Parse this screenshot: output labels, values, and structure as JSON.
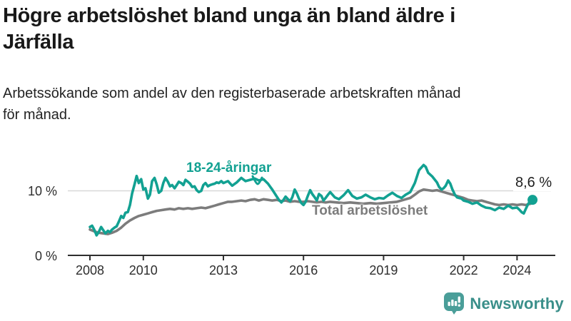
{
  "title_lines": [
    "Högre arbetslöshet bland unga än bland äldre i",
    "Järfälla"
  ],
  "subtitle_lines": [
    "Arbetssökande som andel av den registerbaserade arbetskraften månad",
    "för månad."
  ],
  "colors": {
    "young_line": "#12a192",
    "total_line": "#7c7c7c",
    "grid_line": "#d8d8d8",
    "axis_line": "#2e2e2e",
    "logo_bubble": "#4a9e99",
    "logo_text": "#3a8f8a"
  },
  "logo": {
    "name": "Newsworthy"
  },
  "chart_data": {
    "type": "line",
    "x_unit": "year (monthly data)",
    "xlim": [
      2008.0,
      2024.75
    ],
    "ylim": [
      0,
      15
    ],
    "grid": "single horizontal gridline at 10 %",
    "legend_position": "labels drawn next to lines",
    "y_ticks": [
      {
        "value": 10,
        "label": "10 %"
      },
      {
        "value": 0,
        "label": "0 %"
      }
    ],
    "x_ticks": [
      {
        "value": 2008,
        "label": "2008"
      },
      {
        "value": 2010,
        "label": "2010"
      },
      {
        "value": 2013,
        "label": "2013"
      },
      {
        "value": 2016,
        "label": "2016"
      },
      {
        "value": 2019,
        "label": "2019"
      },
      {
        "value": 2022,
        "label": "2022"
      },
      {
        "value": 2024,
        "label": "2024"
      }
    ],
    "end_annotation": {
      "label": "8,6 %",
      "series": "18-24-åringar",
      "x": 2024.58,
      "y": 8.6
    },
    "series": [
      {
        "name": "Total arbetslöshet",
        "color": "#7c7c7c",
        "points": [
          [
            2008.0,
            4.0
          ],
          [
            2008.17,
            3.7
          ],
          [
            2008.33,
            3.5
          ],
          [
            2008.5,
            3.4
          ],
          [
            2008.67,
            3.3
          ],
          [
            2008.83,
            3.5
          ],
          [
            2009.0,
            3.8
          ],
          [
            2009.17,
            4.3
          ],
          [
            2009.33,
            4.9
          ],
          [
            2009.5,
            5.4
          ],
          [
            2009.67,
            5.8
          ],
          [
            2009.83,
            6.1
          ],
          [
            2010.0,
            6.3
          ],
          [
            2010.17,
            6.5
          ],
          [
            2010.33,
            6.7
          ],
          [
            2010.5,
            6.9
          ],
          [
            2010.67,
            7.0
          ],
          [
            2010.83,
            7.1
          ],
          [
            2011.0,
            7.2
          ],
          [
            2011.17,
            7.1
          ],
          [
            2011.33,
            7.3
          ],
          [
            2011.5,
            7.2
          ],
          [
            2011.67,
            7.3
          ],
          [
            2011.83,
            7.2
          ],
          [
            2012.0,
            7.3
          ],
          [
            2012.17,
            7.4
          ],
          [
            2012.33,
            7.3
          ],
          [
            2012.5,
            7.5
          ],
          [
            2012.67,
            7.7
          ],
          [
            2012.83,
            7.9
          ],
          [
            2013.0,
            8.1
          ],
          [
            2013.17,
            8.3
          ],
          [
            2013.33,
            8.3
          ],
          [
            2013.5,
            8.4
          ],
          [
            2013.67,
            8.5
          ],
          [
            2013.83,
            8.4
          ],
          [
            2014.0,
            8.6
          ],
          [
            2014.17,
            8.7
          ],
          [
            2014.33,
            8.5
          ],
          [
            2014.5,
            8.7
          ],
          [
            2014.67,
            8.6
          ],
          [
            2014.83,
            8.5
          ],
          [
            2015.0,
            8.6
          ],
          [
            2015.17,
            8.4
          ],
          [
            2015.33,
            8.5
          ],
          [
            2015.5,
            8.3
          ],
          [
            2015.67,
            8.4
          ],
          [
            2015.83,
            8.3
          ],
          [
            2016.0,
            8.3
          ],
          [
            2016.17,
            8.4
          ],
          [
            2016.33,
            8.3
          ],
          [
            2016.5,
            8.2
          ],
          [
            2016.67,
            8.3
          ],
          [
            2016.83,
            8.2
          ],
          [
            2017.0,
            8.3
          ],
          [
            2017.25,
            8.2
          ],
          [
            2017.5,
            8.1
          ],
          [
            2017.75,
            8.2
          ],
          [
            2018.0,
            8.1
          ],
          [
            2018.25,
            8.0
          ],
          [
            2018.5,
            8.1
          ],
          [
            2018.75,
            8.0
          ],
          [
            2019.0,
            8.1
          ],
          [
            2019.25,
            8.2
          ],
          [
            2019.5,
            8.3
          ],
          [
            2019.75,
            8.6
          ],
          [
            2020.0,
            8.9
          ],
          [
            2020.17,
            9.4
          ],
          [
            2020.33,
            9.9
          ],
          [
            2020.5,
            10.2
          ],
          [
            2020.67,
            10.1
          ],
          [
            2020.83,
            10.0
          ],
          [
            2021.0,
            10.1
          ],
          [
            2021.17,
            9.9
          ],
          [
            2021.33,
            9.7
          ],
          [
            2021.5,
            9.5
          ],
          [
            2021.67,
            9.3
          ],
          [
            2021.83,
            9.1
          ],
          [
            2022.0,
            8.9
          ],
          [
            2022.17,
            8.6
          ],
          [
            2022.33,
            8.5
          ],
          [
            2022.5,
            8.4
          ],
          [
            2022.67,
            8.5
          ],
          [
            2022.83,
            8.3
          ],
          [
            2023.0,
            8.1
          ],
          [
            2023.17,
            7.9
          ],
          [
            2023.33,
            7.8
          ],
          [
            2023.5,
            7.9
          ],
          [
            2023.67,
            7.8
          ],
          [
            2023.83,
            7.9
          ],
          [
            2024.0,
            7.8
          ],
          [
            2024.17,
            7.9
          ],
          [
            2024.33,
            7.8
          ],
          [
            2024.5,
            8.0
          ]
        ]
      },
      {
        "name": "18-24-åringar",
        "color": "#12a192",
        "points": [
          [
            2008.0,
            4.4
          ],
          [
            2008.08,
            4.6
          ],
          [
            2008.17,
            3.9
          ],
          [
            2008.25,
            3.1
          ],
          [
            2008.33,
            3.6
          ],
          [
            2008.42,
            4.4
          ],
          [
            2008.5,
            3.9
          ],
          [
            2008.58,
            3.4
          ],
          [
            2008.67,
            3.8
          ],
          [
            2008.75,
            3.6
          ],
          [
            2008.83,
            4.0
          ],
          [
            2008.92,
            4.3
          ],
          [
            2009.0,
            4.5
          ],
          [
            2009.08,
            5.2
          ],
          [
            2009.17,
            6.1
          ],
          [
            2009.25,
            5.8
          ],
          [
            2009.33,
            6.6
          ],
          [
            2009.42,
            6.7
          ],
          [
            2009.5,
            7.8
          ],
          [
            2009.58,
            9.6
          ],
          [
            2009.67,
            11.0
          ],
          [
            2009.75,
            12.3
          ],
          [
            2009.83,
            11.2
          ],
          [
            2009.92,
            11.8
          ],
          [
            2010.0,
            10.2
          ],
          [
            2010.08,
            10.4
          ],
          [
            2010.17,
            8.8
          ],
          [
            2010.25,
            9.4
          ],
          [
            2010.33,
            11.5
          ],
          [
            2010.42,
            12.0
          ],
          [
            2010.5,
            11.0
          ],
          [
            2010.58,
            9.7
          ],
          [
            2010.67,
            10.0
          ],
          [
            2010.75,
            11.2
          ],
          [
            2010.83,
            12.0
          ],
          [
            2010.92,
            11.4
          ],
          [
            2011.0,
            10.7
          ],
          [
            2011.08,
            10.9
          ],
          [
            2011.17,
            10.4
          ],
          [
            2011.25,
            10.9
          ],
          [
            2011.33,
            11.4
          ],
          [
            2011.42,
            11.2
          ],
          [
            2011.5,
            10.9
          ],
          [
            2011.58,
            11.7
          ],
          [
            2011.67,
            11.4
          ],
          [
            2011.75,
            11.1
          ],
          [
            2011.83,
            10.6
          ],
          [
            2011.92,
            10.7
          ],
          [
            2012.0,
            10.1
          ],
          [
            2012.08,
            9.8
          ],
          [
            2012.17,
            10.0
          ],
          [
            2012.25,
            10.9
          ],
          [
            2012.33,
            11.2
          ],
          [
            2012.42,
            10.7
          ],
          [
            2012.5,
            10.9
          ],
          [
            2012.58,
            11.0
          ],
          [
            2012.67,
            11.1
          ],
          [
            2012.75,
            11.3
          ],
          [
            2012.83,
            11.2
          ],
          [
            2012.92,
            11.5
          ],
          [
            2013.0,
            11.2
          ],
          [
            2013.17,
            11.5
          ],
          [
            2013.33,
            10.8
          ],
          [
            2013.5,
            11.3
          ],
          [
            2013.67,
            12.0
          ],
          [
            2013.83,
            11.5
          ],
          [
            2014.0,
            11.7
          ],
          [
            2014.17,
            11.9
          ],
          [
            2014.33,
            11.6
          ],
          [
            2014.5,
            11.8
          ],
          [
            2014.67,
            11.1
          ],
          [
            2014.83,
            10.2
          ],
          [
            2015.0,
            9.1
          ],
          [
            2015.08,
            8.6
          ],
          [
            2015.17,
            8.2
          ],
          [
            2015.25,
            8.6
          ],
          [
            2015.33,
            9.1
          ],
          [
            2015.42,
            8.7
          ],
          [
            2015.5,
            8.4
          ],
          [
            2015.58,
            9.0
          ],
          [
            2015.67,
            10.2
          ],
          [
            2015.75,
            9.6
          ],
          [
            2015.83,
            8.8
          ],
          [
            2015.92,
            8.1
          ],
          [
            2016.0,
            7.8
          ],
          [
            2016.08,
            8.3
          ],
          [
            2016.17,
            9.3
          ],
          [
            2016.25,
            10.1
          ],
          [
            2016.33,
            9.5
          ],
          [
            2016.42,
            9.0
          ],
          [
            2016.5,
            8.5
          ],
          [
            2016.58,
            9.5
          ],
          [
            2016.67,
            9.2
          ],
          [
            2016.75,
            8.5
          ],
          [
            2016.83,
            8.9
          ],
          [
            2016.92,
            9.4
          ],
          [
            2017.0,
            9.8
          ],
          [
            2017.17,
            9.0
          ],
          [
            2017.33,
            8.7
          ],
          [
            2017.5,
            9.3
          ],
          [
            2017.67,
            10.1
          ],
          [
            2017.83,
            9.2
          ],
          [
            2018.0,
            8.8
          ],
          [
            2018.17,
            9.0
          ],
          [
            2018.33,
            9.4
          ],
          [
            2018.5,
            9.0
          ],
          [
            2018.67,
            8.7
          ],
          [
            2018.83,
            8.9
          ],
          [
            2019.0,
            8.8
          ],
          [
            2019.17,
            9.3
          ],
          [
            2019.33,
            9.7
          ],
          [
            2019.5,
            9.2
          ],
          [
            2019.67,
            8.9
          ],
          [
            2019.83,
            9.4
          ],
          [
            2020.0,
            9.8
          ],
          [
            2020.17,
            11.2
          ],
          [
            2020.33,
            13.2
          ],
          [
            2020.5,
            14.0
          ],
          [
            2020.58,
            13.7
          ],
          [
            2020.67,
            12.8
          ],
          [
            2020.83,
            12.2
          ],
          [
            2021.0,
            11.3
          ],
          [
            2021.08,
            10.6
          ],
          [
            2021.17,
            10.2
          ],
          [
            2021.25,
            10.4
          ],
          [
            2021.33,
            10.8
          ],
          [
            2021.42,
            11.6
          ],
          [
            2021.5,
            11.1
          ],
          [
            2021.58,
            10.2
          ],
          [
            2021.67,
            9.4
          ],
          [
            2021.75,
            9.0
          ],
          [
            2021.83,
            8.9
          ],
          [
            2021.92,
            8.8
          ],
          [
            2022.0,
            8.5
          ],
          [
            2022.17,
            8.3
          ],
          [
            2022.33,
            8.0
          ],
          [
            2022.5,
            8.2
          ],
          [
            2022.67,
            7.7
          ],
          [
            2022.83,
            7.4
          ],
          [
            2023.0,
            7.3
          ],
          [
            2023.17,
            7.0
          ],
          [
            2023.33,
            7.4
          ],
          [
            2023.5,
            7.2
          ],
          [
            2023.67,
            7.7
          ],
          [
            2023.83,
            7.3
          ],
          [
            2024.0,
            7.4
          ],
          [
            2024.08,
            7.1
          ],
          [
            2024.17,
            6.7
          ],
          [
            2024.25,
            6.5
          ],
          [
            2024.33,
            7.2
          ],
          [
            2024.42,
            8.0
          ],
          [
            2024.5,
            8.4
          ],
          [
            2024.58,
            8.6
          ]
        ]
      }
    ]
  }
}
